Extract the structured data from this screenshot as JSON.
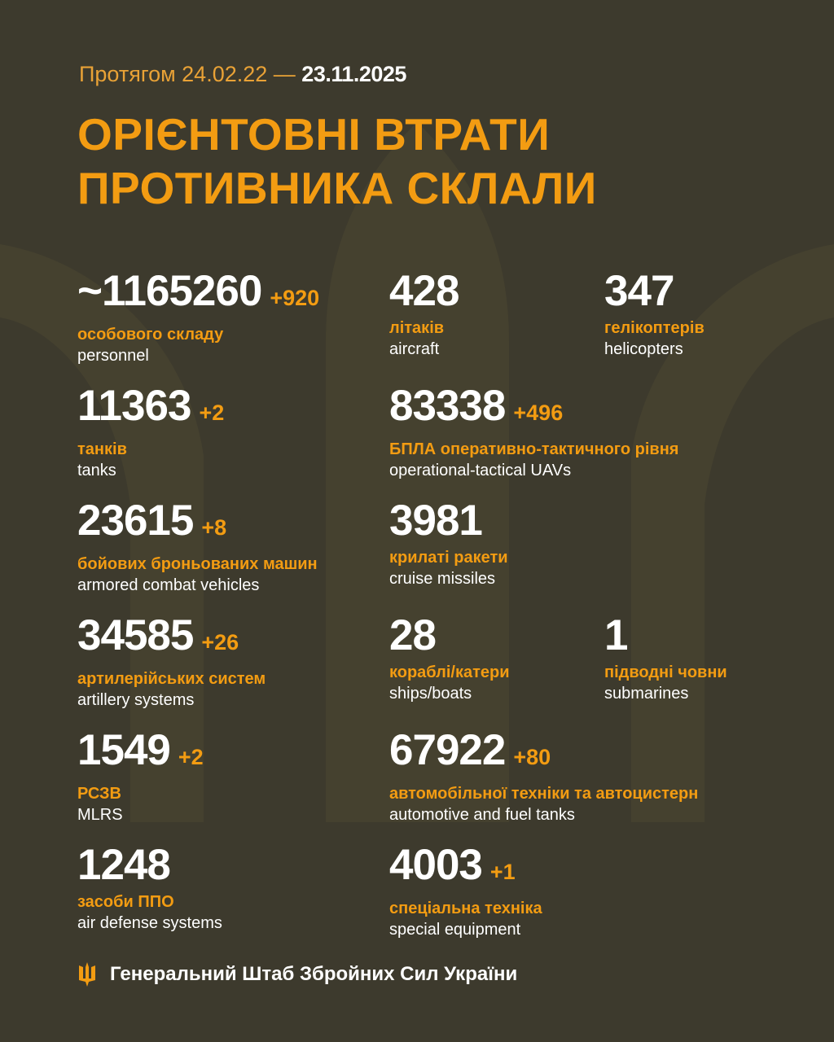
{
  "header": {
    "period_prefix": "Протягом 24.02.22 —",
    "period_end": "23.11.2025",
    "title_line1": "ОРІЄНТОВНІ ВТРАТИ",
    "title_line2": "ПРОТИВНИКА СКЛАЛИ"
  },
  "colors": {
    "background": "#3d3a2d",
    "accent": "#f39c12",
    "text": "#ffffff"
  },
  "stats": [
    {
      "value": "~1165260",
      "delta": "+920",
      "ua": "особового складу",
      "en": "personnel"
    },
    {
      "value": "428",
      "delta": "",
      "ua": "літаків",
      "en": "aircraft"
    },
    {
      "value": "347",
      "delta": "",
      "ua": "гелікоптерів",
      "en": "helicopters"
    },
    {
      "value": "11363",
      "delta": "+2",
      "ua": "танків",
      "en": "tanks"
    },
    {
      "value": "83338",
      "delta": "+496",
      "ua": "БПЛА оперативно-тактичного рівня",
      "en": "operational-tactical UAVs"
    },
    {
      "value": "23615",
      "delta": "+8",
      "ua": "бойових броньованих машин",
      "en": "armored combat vehicles"
    },
    {
      "value": "3981",
      "delta": "",
      "ua": "крилаті ракети",
      "en": "cruise missiles"
    },
    {
      "value": "34585",
      "delta": "+26",
      "ua": "артилерійських систем",
      "en": "artillery systems"
    },
    {
      "value": "28",
      "delta": "",
      "ua": "кораблі/катери",
      "en": "ships/boats"
    },
    {
      "value": "1",
      "delta": "",
      "ua": "підводні човни",
      "en": "submarines"
    },
    {
      "value": "1549",
      "delta": "+2",
      "ua": "РСЗВ",
      "en": "MLRS"
    },
    {
      "value": "67922",
      "delta": "+80",
      "ua": "автомобільної техніки та автоцистерн",
      "en": "automotive and fuel tanks"
    },
    {
      "value": "1248",
      "delta": "",
      "ua": "засоби ППО",
      "en": "air defense systems"
    },
    {
      "value": "4003",
      "delta": "+1",
      "ua": "спеціальна техніка",
      "en": "special equipment"
    }
  ],
  "footer": {
    "icon": "trident-icon",
    "text": "Генеральний Штаб Збройних Сил України"
  }
}
